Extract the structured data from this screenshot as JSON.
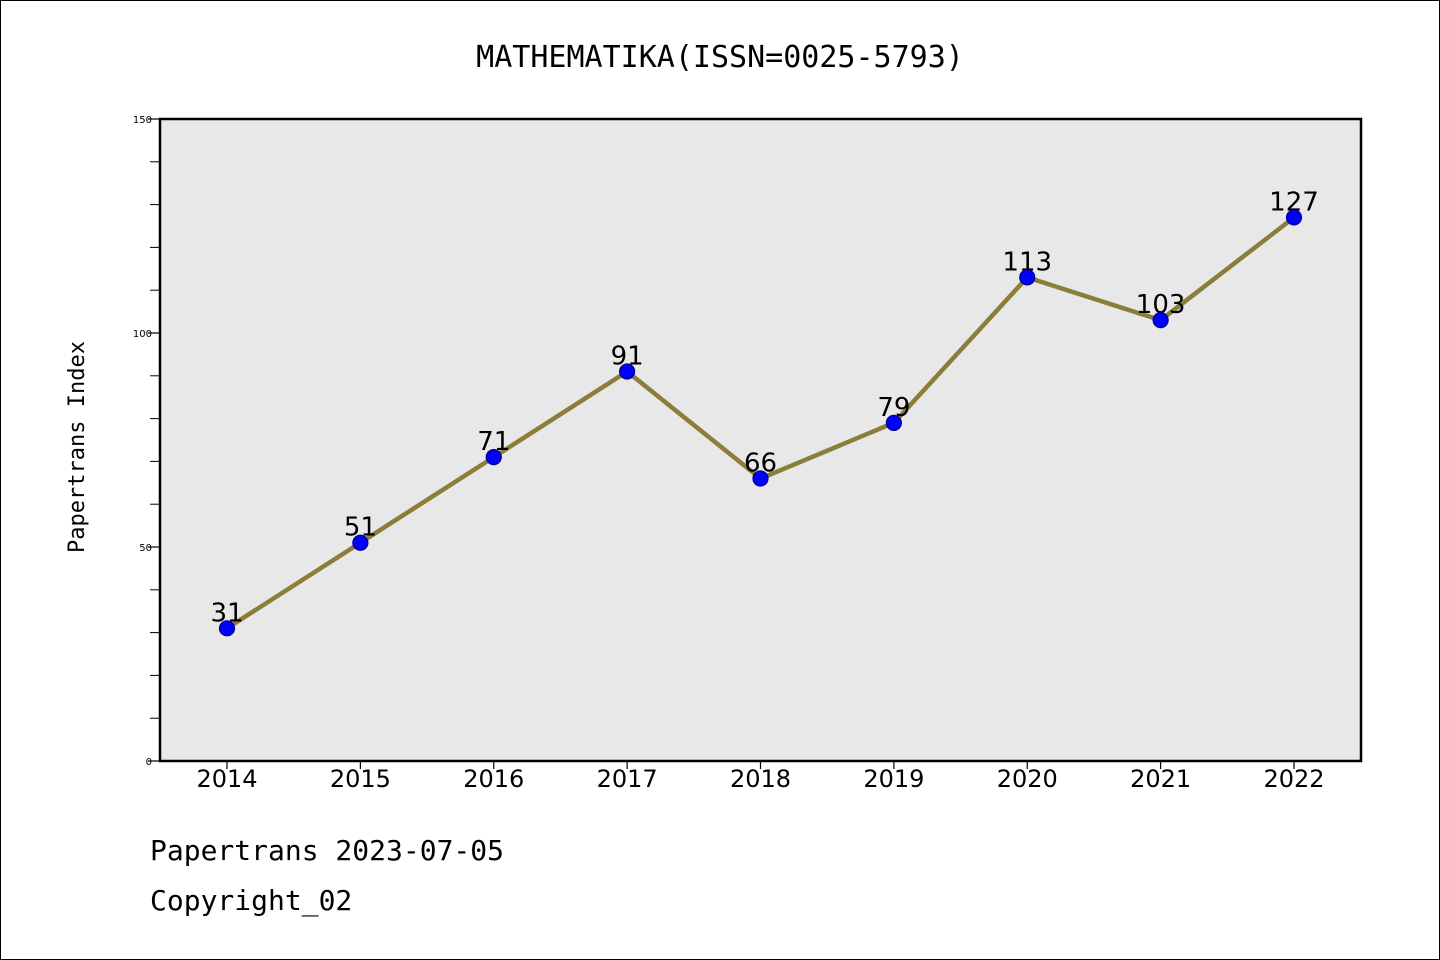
{
  "chart_data": {
    "type": "line",
    "title": "MATHEMATIKA(ISSN=0025-5793)",
    "xlabel": "",
    "ylabel": "Papertrans Index",
    "categories": [
      "2014",
      "2015",
      "2016",
      "2017",
      "2018",
      "2019",
      "2020",
      "2021",
      "2022"
    ],
    "values": [
      31,
      51,
      71,
      91,
      66,
      79,
      113,
      103,
      127
    ],
    "data_labels": [
      "31",
      "51",
      "71",
      "91",
      "66",
      "79",
      "113",
      "103",
      "127"
    ],
    "ylim": [
      0,
      150
    ],
    "yticks": [
      0,
      50,
      100,
      150
    ],
    "ytick_labels": [
      "0",
      "50",
      "100",
      "150"
    ],
    "minor_ytick_step": 10,
    "grid": false,
    "colors": {
      "line": "#8B7D3A",
      "marker": "#0000FF",
      "marker_edge": "#00008B",
      "plot_background": "#E8E8E8"
    }
  },
  "footer": {
    "line1": "Papertrans 2023-07-05",
    "line2": "Copyright_02"
  }
}
